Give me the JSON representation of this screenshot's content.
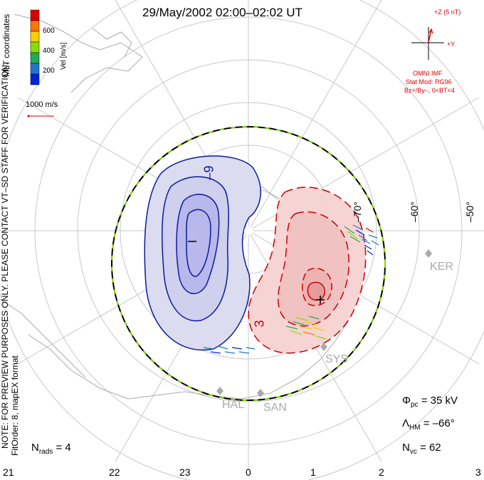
{
  "title": "29/May/2002 02:00–02:02 UT",
  "notes": {
    "coordinates": "MLT coordinates",
    "preview": "NOTE: FOR PREVIEW PURPOSES ONLY. PLEASE CONTACT VT–SD STAFF FOR VERIFICATION.",
    "fit": "FitOrder: 8, mapEX format"
  },
  "velocity_scale": {
    "unit_label": "Vel [m/s]",
    "ticks": [
      "600",
      "400",
      "200"
    ],
    "colors": [
      "#e00000",
      "#ff7700",
      "#ffcc00",
      "#88dd00",
      "#22aa55",
      "#2277cc",
      "#0022dd"
    ],
    "reference_vector": "1000 m/s"
  },
  "imf": {
    "z_label": "+Z (5 nT)",
    "y_label": "+Y",
    "source": "OMNI IMF",
    "model": "Stat Mod: RG96",
    "condition": "Bz+/By–, 0<BT<4"
  },
  "latitude_labels": [
    "–70°",
    "–60°",
    "–50°"
  ],
  "contour_labels": {
    "negative": "–9",
    "positive": "3",
    "min_marker": "–",
    "max_marker": "+"
  },
  "stations": [
    "KER",
    "SYS",
    "HAL",
    "SAN"
  ],
  "stats": {
    "phi_pc_label": "Φ",
    "phi_pc_sub": "pc",
    "phi_pc_value": "= 35 kV",
    "lambda_hm_label": "Λ",
    "lambda_hm_sub": "HM",
    "lambda_hm_value": "= –66°",
    "nvc_label": "N",
    "nvc_sub": "vc",
    "nvc_value": "= 62",
    "nrads_label": "N",
    "nrads_sub": "rads",
    "nrads_value": "= 4"
  },
  "mlt_labels": [
    "21",
    "22",
    "23",
    "0",
    "1",
    "2",
    "3"
  ],
  "colors": {
    "negative_cell_line": "#0a1aa0",
    "negative_fill_outer": "#dcdcf0",
    "negative_fill_inner": "#b8b8ec",
    "positive_cell_line": "#cc0000",
    "positive_fill_outer": "#f6d4d4",
    "positive_fill_inner": "#eeb2b2",
    "grid": "#c8c8c8",
    "coast": "#aaaaaa",
    "boundary_green": "#88dd00"
  }
}
